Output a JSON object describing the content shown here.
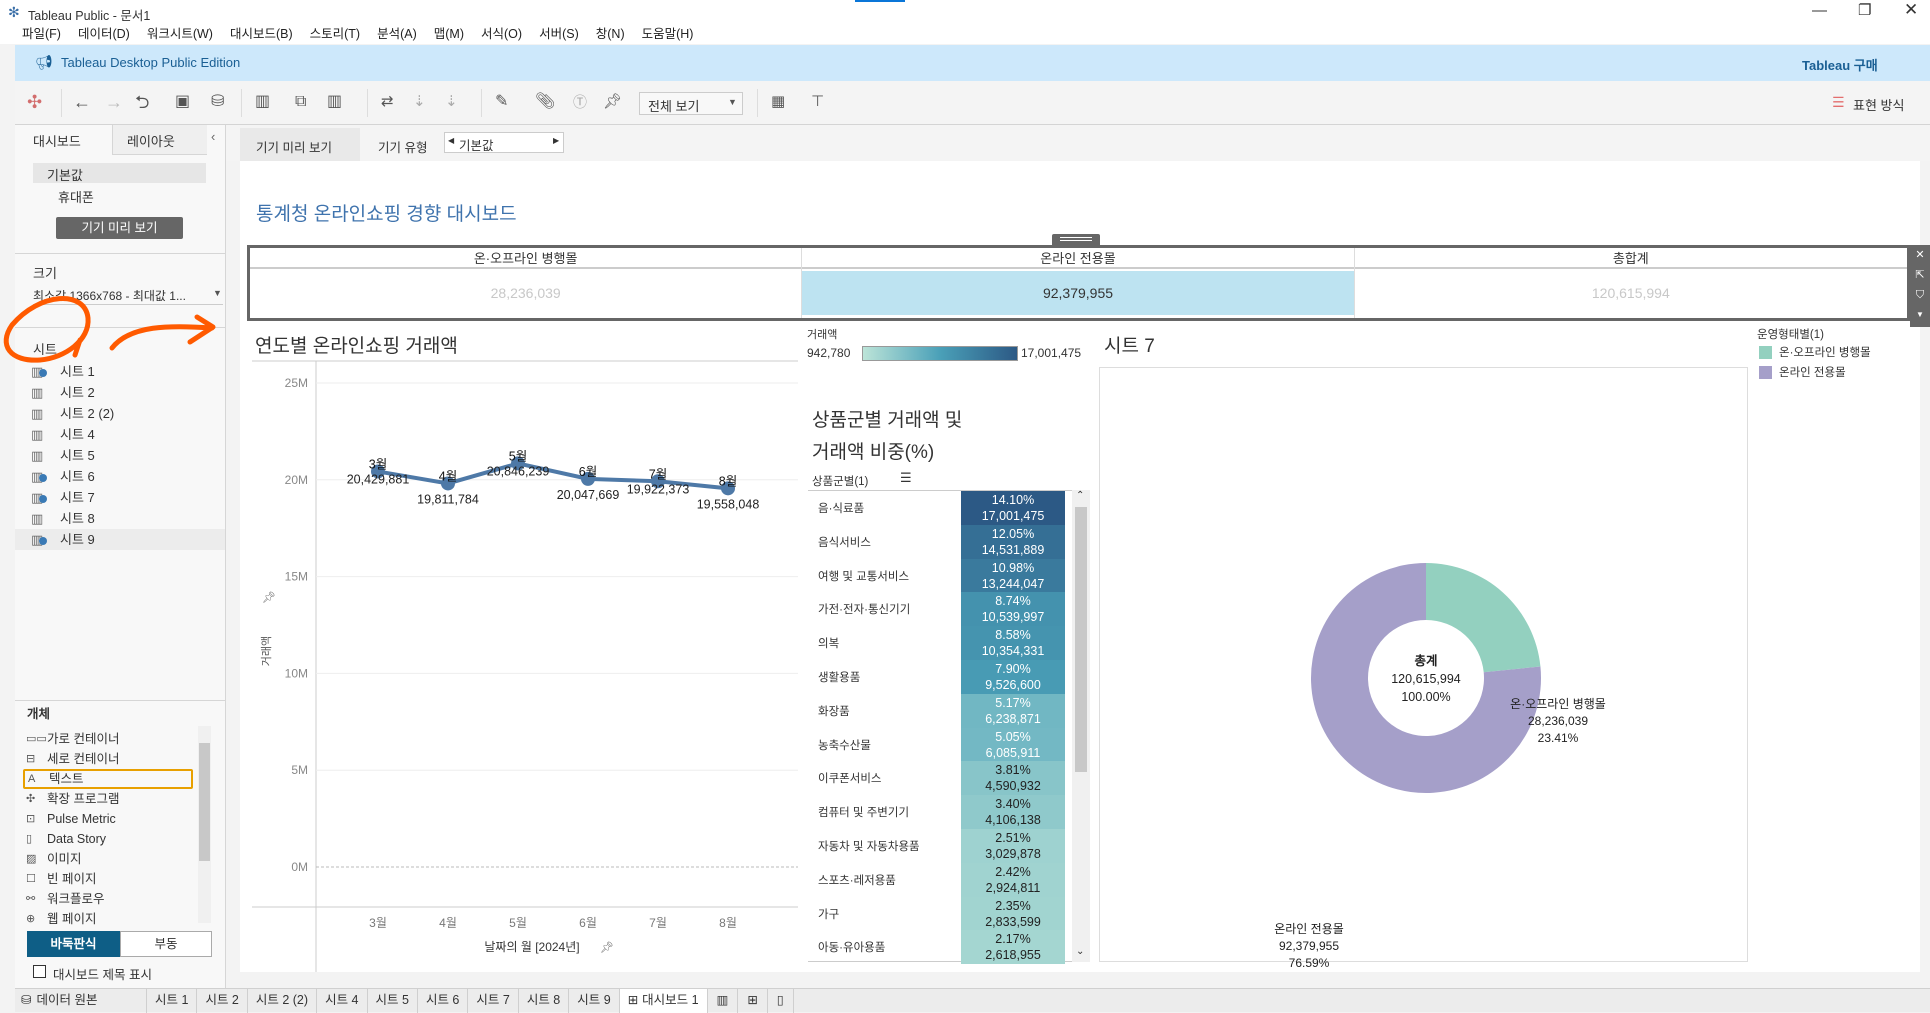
{
  "window": {
    "title": "Tableau Public - 문서1",
    "controls": [
      "minimize-icon",
      "restore-icon",
      "close-icon"
    ]
  },
  "menu": [
    "파일(F)",
    "데이터(D)",
    "워크시트(W)",
    "대시보드(B)",
    "스토리(T)",
    "분석(A)",
    "맵(M)",
    "서식(O)",
    "서버(S)",
    "창(N)",
    "도움말(H)"
  ],
  "banner": {
    "edition": "Tableau Desktop Public Edition",
    "buy": "Tableau 구매"
  },
  "toolbar": {
    "view_select": "전체 보기",
    "presentation": "표현 방식"
  },
  "left_panel": {
    "tabs": [
      "대시보드",
      "레이아웃"
    ],
    "devices": [
      "기본값",
      "휴대폰"
    ],
    "device_preview_button": "기기 미리 보기",
    "size_label": "크기",
    "size_value": "최소값 1366x768 - 최대값 1...",
    "sheets_label": "시트",
    "sheets": [
      {
        "name": "시트 1",
        "used": true
      },
      {
        "name": "시트 2",
        "used": false
      },
      {
        "name": "시트 2 (2)",
        "used": false
      },
      {
        "name": "시트 4",
        "used": false
      },
      {
        "name": "시트 5",
        "used": false
      },
      {
        "name": "시트 6",
        "used": true
      },
      {
        "name": "시트 7",
        "used": true
      },
      {
        "name": "시트 8",
        "used": false
      },
      {
        "name": "시트 9",
        "used": true
      }
    ],
    "objects_label": "개체",
    "objects": [
      {
        "name": "가로 컨테이너",
        "icon": "horizontal-container-icon",
        "glyph": "▭▭"
      },
      {
        "name": "세로 컨테이너",
        "icon": "vertical-container-icon",
        "glyph": "⊟"
      },
      {
        "name": "텍스트",
        "icon": "text-icon",
        "glyph": "A"
      },
      {
        "name": "확장 프로그램",
        "icon": "extension-icon",
        "glyph": "✣"
      },
      {
        "name": "Pulse Metric",
        "icon": "pulse-metric-icon",
        "glyph": "⊡"
      },
      {
        "name": "Data Story",
        "icon": "data-story-icon",
        "glyph": "▯"
      },
      {
        "name": "이미지",
        "icon": "image-icon",
        "glyph": "▨"
      },
      {
        "name": "빈 페이지",
        "icon": "blank-icon",
        "glyph": "☐"
      },
      {
        "name": "워크플로우",
        "icon": "workflow-icon",
        "glyph": "⚯"
      },
      {
        "name": "웹 페이지",
        "icon": "web-page-icon",
        "glyph": "⊕"
      }
    ],
    "layout_toggle": [
      "바둑판식",
      "부동"
    ],
    "show_title_label": "대시보드 제목 표시",
    "annotation_color": "#ff5a00"
  },
  "device_bar": {
    "preview_tab": "기기 미리 보기",
    "device_type_label": "기기 유형",
    "device_type_value": "기본값"
  },
  "dashboard": {
    "title": "통계청 온라인쇼핑 경향 대시보드",
    "kpi": {
      "headers": [
        "온·오프라인 병행몰",
        "온라인 전용몰",
        "총합계"
      ],
      "values": [
        "28,236,039",
        "92,379,955",
        "120,615,994"
      ],
      "highlight_color": "#bde3f1"
    }
  },
  "chart_data": [
    {
      "type": "line",
      "title": "연도별 온라인쇼핑 거래액",
      "xlabel": "날짜의 월 [2024년]",
      "ylabel": "거래액",
      "categories": [
        "3월",
        "4월",
        "5월",
        "6월",
        "7월",
        "8월"
      ],
      "values": [
        20429881,
        19811784,
        20846239,
        20047669,
        19922373,
        19558048
      ],
      "yticks": [
        0,
        5000000,
        10000000,
        15000000,
        20000000,
        25000000
      ],
      "ytick_labels": [
        "0M",
        "5M",
        "10M",
        "15M",
        "20M",
        "25M"
      ],
      "ylim": [
        0,
        25000000
      ],
      "color": "#4e79a7",
      "grid": true
    },
    {
      "type": "heatmap",
      "title_lines": [
        "상품군별 거래액 및",
        "거래액 비중(%)"
      ],
      "column_header": "상품군별(1)",
      "color_legend": {
        "label": "거래액",
        "min": 942780,
        "max": 17001475,
        "min_label": "942,780",
        "max_label": "17,001,475",
        "colors": [
          "#bce4d8",
          "#4aa0b8",
          "#2c5985"
        ]
      },
      "rows": [
        {
          "category": "음·식료품",
          "percent": "14.10%",
          "value": 17001475
        },
        {
          "category": "음식서비스",
          "percent": "12.05%",
          "value": 14531889
        },
        {
          "category": "여행 및 교통서비스",
          "percent": "10.98%",
          "value": 13244047
        },
        {
          "category": "가전·전자·통신기기",
          "percent": "8.74%",
          "value": 10539997
        },
        {
          "category": "의복",
          "percent": "8.58%",
          "value": 10354331
        },
        {
          "category": "생활용품",
          "percent": "7.90%",
          "value": 9526600
        },
        {
          "category": "화장품",
          "percent": "5.17%",
          "value": 6238871
        },
        {
          "category": "농축수산물",
          "percent": "5.05%",
          "value": 6085911
        },
        {
          "category": "이쿠폰서비스",
          "percent": "3.81%",
          "value": 4590932
        },
        {
          "category": "컴퓨터 및 주변기기",
          "percent": "3.40%",
          "value": 4106138
        },
        {
          "category": "자동차 및 자동차용품",
          "percent": "2.51%",
          "value": 3029878
        },
        {
          "category": "스포츠·레저용품",
          "percent": "2.42%",
          "value": 2924811
        },
        {
          "category": "가구",
          "percent": "2.35%",
          "value": 2833599
        },
        {
          "category": "아동·유아용품",
          "percent": "2.17%",
          "value": 2618955
        }
      ]
    },
    {
      "type": "pie",
      "title": "시트 7",
      "legend_title": "운영형태별(1)",
      "slices": [
        {
          "name": "온·오프라인 병행몰",
          "value": 28236039,
          "percent": "23.41%",
          "color": "#93d0bf"
        },
        {
          "name": "온라인 전용몰",
          "value": 92379955,
          "percent": "76.59%",
          "color": "#a59fc9"
        }
      ],
      "center": {
        "label": "총계",
        "value": "120,615,994",
        "percent": "100.00%"
      }
    }
  ],
  "bottom_tabs": {
    "data_source": "데이터 원본",
    "sheets": [
      "시트 1",
      "시트 2",
      "시트 2 (2)",
      "시트 4",
      "시트 5",
      "시트 6",
      "시트 7",
      "시트 8",
      "시트 9"
    ],
    "active": "대시보드 1"
  }
}
